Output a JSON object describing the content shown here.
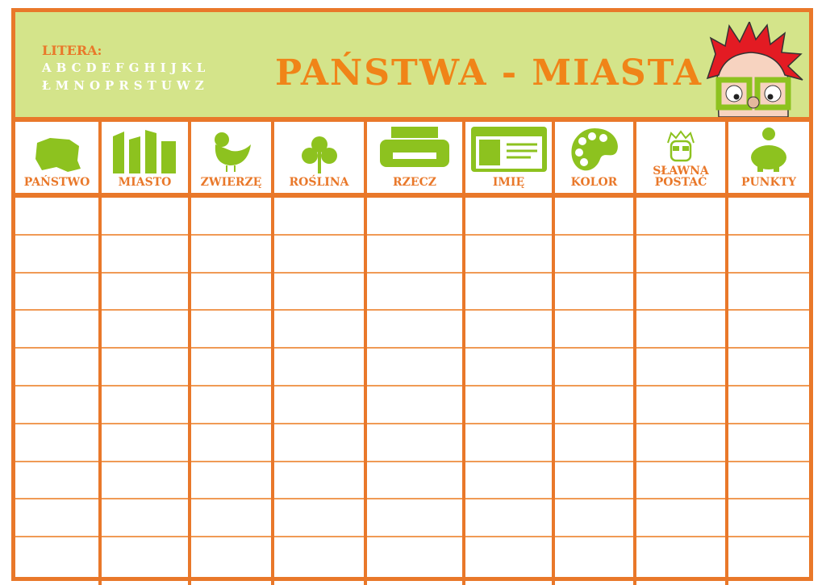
{
  "header": {
    "litera_label": "LITERA:",
    "letters_row1": "ABCDEFGHIJKL",
    "letters_row2": "ŁMNOPRSTUWZ",
    "title": "PAŃSTWA - MIASTA"
  },
  "columns": [
    {
      "label": "PAŃSTWO",
      "icon": "poland-map-icon"
    },
    {
      "label": "MIASTO",
      "icon": "city-buildings-icon"
    },
    {
      "label": "ZWIERZĘ",
      "icon": "rooster-icon"
    },
    {
      "label": "ROŚLINA",
      "icon": "tree-icon"
    },
    {
      "label": "RZECZ",
      "icon": "printer-icon"
    },
    {
      "label": "IMIĘ",
      "icon": "id-card-icon"
    },
    {
      "label": "KOLOR",
      "icon": "palette-icon"
    },
    {
      "label": "SŁAWNA POSTAĆ",
      "icon": "famous-person-icon"
    },
    {
      "label": "PUNKTY",
      "icon": "piggy-bank-icon"
    }
  ],
  "colors": {
    "frame": "#e9782a",
    "header_bg": "#d4e48a",
    "icon": "#8dc21f",
    "title": "#f08418"
  }
}
